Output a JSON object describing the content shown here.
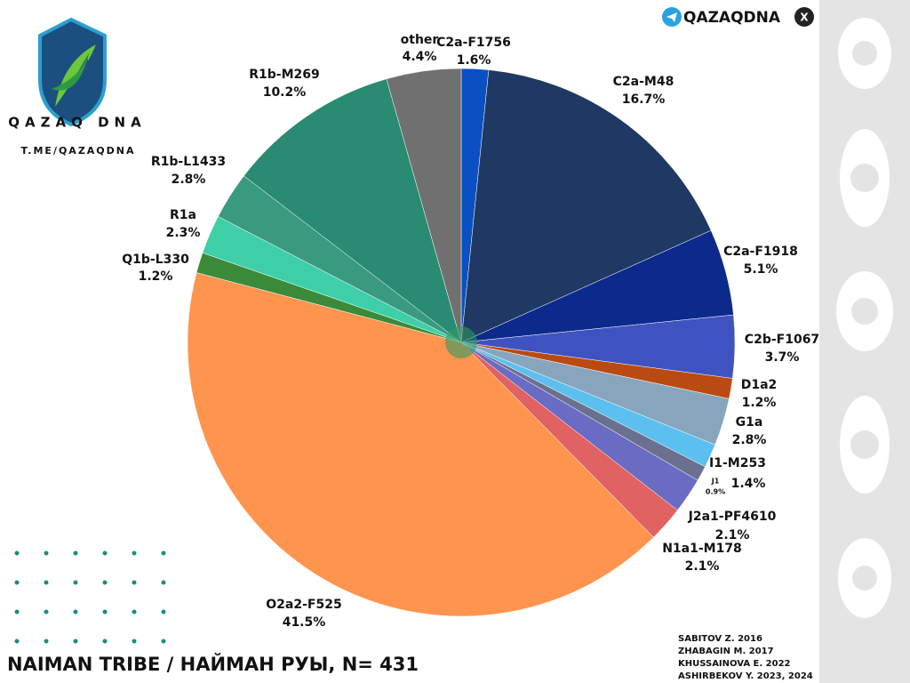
{
  "chart_data": {
    "type": "pie",
    "title": "NAIMAN TRIBE / НАЙМАН РУЫ, N= 431",
    "categories": [
      "C2a-F1756",
      "C2a-M48",
      "C2a-F1918",
      "C2b-F1067",
      "D1a2",
      "G1a",
      "I1-M253",
      "J1",
      "J2a1-PF4610",
      "N1a1-M178",
      "O2a2-F525",
      "Q1b-L330",
      "R1a",
      "R1b-L1433",
      "R1b-M269",
      "other"
    ],
    "values": [
      1.6,
      16.7,
      5.1,
      3.7,
      1.2,
      2.8,
      1.4,
      0.9,
      2.1,
      2.1,
      41.5,
      1.2,
      2.3,
      2.8,
      10.2,
      4.4
    ],
    "value_labels": [
      "1.6%",
      "16.7%",
      "5.1%",
      "3.7%",
      "1.2%",
      "2.8%",
      "1.4%",
      "0.9%",
      "2.1%",
      "2.1%",
      "41.5%",
      "1.2%",
      "2.3%",
      "2.8%",
      "10.2%",
      "4.4%"
    ],
    "colors": [
      "#0b50c2",
      "#1f3864",
      "#0c2a8c",
      "#3f53c0",
      "#b84a12",
      "#87a6be",
      "#5bc0ee",
      "#6b7090",
      "#6a6bc2",
      "#e06262",
      "#ff944f",
      "#3a8a3a",
      "#3ecfa8",
      "#3a9a80",
      "#288b72",
      "#707070"
    ]
  },
  "branding": {
    "logo_text": "QAZAQ DNA",
    "logo_url": "T.ME/QAZAQDNA",
    "handle": "QAZAQDNA"
  },
  "sources": [
    "SABITOV Z. 2016",
    "ZHABAGIN M.  2017",
    "KHUSSAINOVA E. 2022",
    "ASHIRBEKOV Y. 2023, 2024"
  ]
}
